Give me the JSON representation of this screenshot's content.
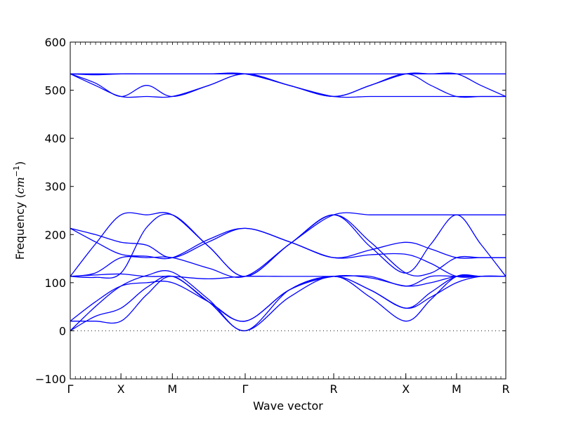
{
  "chart_data": {
    "type": "line",
    "xlabel": "Wave vector",
    "ylabel": "Frequency (",
    "ylabel_math": "cm",
    "ylabel_sup": "−1",
    "ylabel_close": ")",
    "ylim": [
      -100,
      600
    ],
    "yticks": [
      -100,
      0,
      100,
      200,
      300,
      400,
      500,
      600
    ],
    "xlim": [
      0,
      6.1
    ],
    "kpoints": [
      {
        "label": "Γ",
        "x": 0.0
      },
      {
        "label": "X",
        "x": 0.71
      },
      {
        "label": "M",
        "x": 1.43
      },
      {
        "label": "Γ",
        "x": 2.45
      },
      {
        "label": "R",
        "x": 3.69
      },
      {
        "label": "X",
        "x": 4.7
      },
      {
        "label": "M",
        "x": 5.41
      },
      {
        "label": "R",
        "x": 6.1
      }
    ],
    "zero_line": 0,
    "color": "#0000ff",
    "series": [
      {
        "x": [
          0,
          0.35,
          0.71,
          1.07,
          1.43,
          1.94,
          2.45,
          3.07,
          3.69,
          4.2,
          4.7,
          5.05,
          5.41,
          5.75,
          6.1
        ],
        "values": [
          534,
          534,
          534,
          534,
          534,
          534,
          534,
          534,
          534,
          534,
          534,
          534,
          534,
          534,
          534
        ]
      },
      {
        "x": [
          0,
          0.35,
          0.71,
          1.07,
          1.43,
          1.94,
          2.45,
          3.07,
          3.69,
          4.2,
          4.7,
          5.05,
          5.41,
          5.75,
          6.1
        ],
        "values": [
          534,
          532,
          534,
          534,
          534,
          534,
          534,
          510,
          487,
          487,
          487,
          487,
          487,
          487,
          487
        ]
      },
      {
        "x": [
          0,
          0.35,
          0.71,
          1.07,
          1.43,
          1.94,
          2.45,
          3.07,
          3.69,
          4.2,
          4.7,
          5.05,
          5.41,
          5.75,
          6.1
        ],
        "values": [
          534,
          510,
          487,
          487,
          487,
          510,
          534,
          510,
          487,
          510,
          534,
          534,
          534,
          510,
          487
        ]
      },
      {
        "x": [
          0,
          0.35,
          0.71,
          1.07,
          1.43,
          1.94,
          2.45,
          3.07,
          3.69,
          4.2,
          4.7,
          5.05,
          5.41,
          5.75,
          6.1
        ],
        "values": [
          534,
          515,
          487,
          510,
          487,
          510,
          534,
          510,
          487,
          510,
          534,
          510,
          487,
          487,
          487
        ]
      },
      {
        "x": [
          0,
          0.35,
          0.71,
          1.07,
          1.43,
          1.94,
          2.45,
          3.07,
          3.69,
          4.2,
          4.7,
          5.05,
          5.41,
          5.75,
          6.1
        ],
        "values": [
          213,
          200,
          184,
          178,
          152,
          185,
          213,
          185,
          152,
          168,
          184,
          170,
          152,
          152,
          152
        ]
      },
      {
        "x": [
          0,
          0.35,
          0.71,
          1.07,
          1.43,
          1.94,
          2.45,
          3.07,
          3.69,
          4.2,
          4.7,
          5.05,
          5.41,
          5.75,
          6.1
        ],
        "values": [
          213,
          185,
          159,
          155,
          152,
          190,
          213,
          185,
          152,
          158,
          159,
          140,
          113,
          113,
          113
        ]
      },
      {
        "x": [
          0,
          0.35,
          0.71,
          1.07,
          1.43,
          1.94,
          2.45,
          3.07,
          3.69,
          4.2,
          4.7,
          5.05,
          5.41,
          5.75,
          6.1
        ],
        "values": [
          113,
          180,
          241,
          241,
          241,
          175,
          113,
          180,
          241,
          241,
          241,
          241,
          241,
          241,
          241
        ]
      },
      {
        "x": [
          0,
          0.35,
          0.71,
          1.07,
          1.43,
          1.94,
          2.45,
          3.07,
          3.69,
          4.2,
          4.7,
          5.05,
          5.41,
          5.75,
          6.1
        ],
        "values": [
          113,
          120,
          152,
          152,
          152,
          130,
          113,
          180,
          241,
          185,
          120,
          120,
          152,
          152,
          152
        ]
      },
      {
        "x": [
          0,
          0.35,
          0.71,
          1.07,
          1.43,
          1.94,
          2.45,
          3.07,
          3.69,
          4.2,
          4.7,
          5.05,
          5.41,
          5.75,
          6.1
        ],
        "values": [
          113,
          111,
          120,
          215,
          241,
          175,
          113,
          180,
          241,
          175,
          120,
          180,
          241,
          180,
          113
        ]
      },
      {
        "x": [
          0,
          0.35,
          0.71,
          1.07,
          1.43,
          1.94,
          2.45,
          3.07,
          3.69,
          4.2,
          4.7,
          5.05,
          5.41,
          5.75,
          6.1
        ],
        "values": [
          113,
          116,
          118,
          113,
          113,
          108,
          113,
          113,
          113,
          113,
          93,
          113,
          113,
          113,
          113
        ]
      },
      {
        "x": [
          0,
          0.35,
          0.71,
          1.07,
          1.43,
          1.94,
          2.45,
          3.07,
          3.69,
          4.2,
          4.7,
          5.05,
          5.41,
          5.75,
          6.1
        ],
        "values": [
          20,
          60,
          93,
          100,
          100,
          60,
          20,
          85,
          113,
          110,
          93,
          100,
          113,
          113,
          113
        ]
      },
      {
        "x": [
          0,
          0.35,
          0.71,
          1.07,
          1.43,
          1.94,
          2.45,
          3.07,
          3.69,
          4.2,
          4.7,
          5.05,
          5.41,
          5.75,
          6.1
        ],
        "values": [
          20,
          20,
          20,
          75,
          113,
          60,
          20,
          85,
          113,
          85,
          47,
          70,
          100,
          113,
          113
        ]
      },
      {
        "x": [
          0,
          0.35,
          0.71,
          1.07,
          1.43,
          1.94,
          2.45,
          3.07,
          3.69,
          4.2,
          4.7,
          5.05,
          5.41,
          5.75,
          6.1
        ],
        "values": [
          0,
          30,
          47,
          90,
          113,
          60,
          0,
          70,
          113,
          70,
          20,
          65,
          113,
          113,
          113
        ]
      },
      {
        "x": [
          0,
          0.35,
          0.71,
          1.07,
          1.43,
          1.94,
          2.45,
          3.07,
          3.69,
          4.2,
          4.7,
          5.05,
          5.41,
          5.75,
          6.1
        ],
        "values": [
          0,
          50,
          93,
          115,
          122,
          65,
          0,
          85,
          113,
          85,
          47,
          80,
          113,
          113,
          113
        ]
      }
    ]
  }
}
